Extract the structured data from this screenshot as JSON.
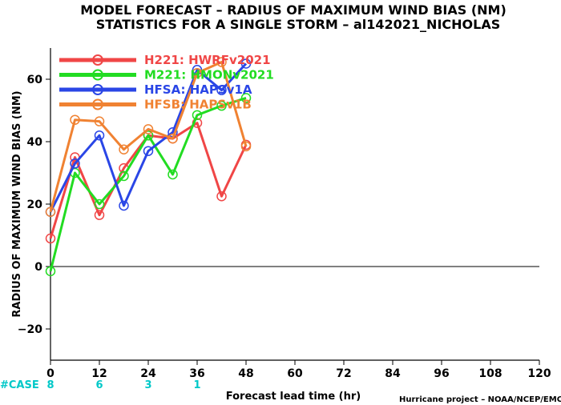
{
  "chart_data": {
    "type": "line",
    "title": "MODEL FORECAST – RADIUS OF MAXIMUM WIND BIAS (NM)",
    "subtitle": "STATISTICS FOR A SINGLE STORM – al142021_NICHOLAS",
    "xlabel": "Forecast lead time (hr)",
    "ylabel": "RADIUS OF MAXIMUM WIND BIAS (NM)",
    "xlim": [
      0,
      120
    ],
    "ylim": [
      -30,
      70
    ],
    "x_ticks": [
      0,
      12,
      24,
      36,
      48,
      60,
      72,
      84,
      96,
      108,
      120
    ],
    "y_ticks": [
      -20,
      0,
      20,
      40,
      60
    ],
    "grid": false,
    "zero_line": true,
    "legend_position": "top-left",
    "series": [
      {
        "name": "H221: HWRFv2021",
        "color": "#f04646",
        "x": [
          0,
          6,
          12,
          18,
          24,
          30,
          36,
          42,
          48
        ],
        "y": [
          9,
          35,
          16.5,
          31.5,
          42,
          41,
          46,
          22.5,
          39
        ]
      },
      {
        "name": "M221: HMONv2021",
        "color": "#22dc22",
        "x": [
          0,
          6,
          12,
          18,
          24,
          30,
          36,
          42,
          48
        ],
        "y": [
          -1.5,
          30,
          20,
          29,
          42,
          29.5,
          48.5,
          51.5,
          54
        ]
      },
      {
        "name": "HFSA: HAPSv1A",
        "color": "#2a46e6",
        "x": [
          0,
          6,
          12,
          18,
          24,
          30,
          36,
          42,
          48
        ],
        "y": [
          17.5,
          33,
          42,
          19.5,
          37,
          43,
          63,
          56.5,
          65
        ]
      },
      {
        "name": "HFSB: HAPSv1B",
        "color": "#f08232",
        "x": [
          0,
          6,
          12,
          18,
          24,
          30,
          36,
          42,
          48
        ],
        "y": [
          17.5,
          47,
          46.5,
          37.5,
          44,
          41,
          62,
          65.5,
          38.5
        ]
      }
    ],
    "cases": {
      "label": "#CASE",
      "x": [
        0,
        12,
        24,
        36
      ],
      "values": [
        "8",
        "6",
        "3",
        "1"
      ]
    }
  },
  "credit": "Hurricane project – NOAA/NCEP/EMC"
}
